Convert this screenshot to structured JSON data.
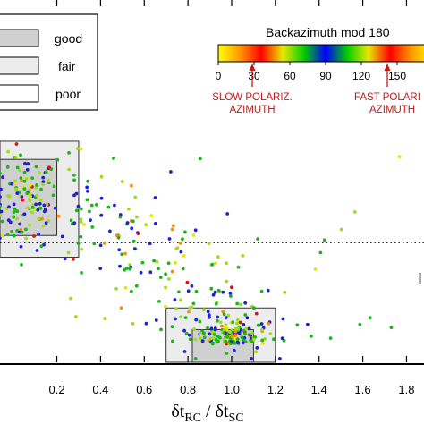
{
  "chart_data": {
    "type": "scatter",
    "title": "",
    "xlabel": {
      "main1": "δt",
      "sub1": "RC",
      "sep": " / δt",
      "sub2": "SC"
    },
    "ylabel": "",
    "xlim": [
      -0.06,
      1.88
    ],
    "ylim": [
      0.0,
      1.0
    ],
    "x_tick_labels": [
      "0.2",
      "0.4",
      "0.6",
      "0.8",
      "1.0",
      "1.2",
      "1.4",
      "1.6",
      "1.8"
    ],
    "x_ticks": [
      0.2,
      0.4,
      0.6,
      0.8,
      1.0,
      1.2,
      1.4,
      1.6,
      1.8
    ],
    "dotted_reference_y": 0.33,
    "quality_boxes": [
      {
        "quality": "good",
        "ranges": [
          {
            "x": [
              -0.06,
              0.2
            ],
            "y": [
              0.35,
              0.56
            ]
          },
          {
            "x": [
              0.82,
              1.1
            ],
            "y": [
              0.0,
              0.09
            ]
          }
        ]
      },
      {
        "quality": "fair",
        "ranges": [
          {
            "x": [
              -0.06,
              0.3
            ],
            "y": [
              0.29,
              0.61
            ]
          },
          {
            "x": [
              0.7,
              1.2
            ],
            "y": [
              0.0,
              0.15
            ]
          }
        ]
      }
    ],
    "legend": {
      "entries": [
        {
          "label": "good",
          "fill": "#d0d0d0"
        },
        {
          "label": "fair",
          "fill": "#ececec"
        },
        {
          "label": "poor",
          "fill": "#ffffff"
        }
      ],
      "placement": "top-left"
    },
    "colorbar": {
      "title": "Backazimuth mod 180",
      "range": [
        0,
        180
      ],
      "tick_labels": [
        "0",
        "30",
        "60",
        "90",
        "120",
        "150"
      ],
      "ticks": [
        0,
        30,
        60,
        90,
        120,
        150
      ],
      "colormap": [
        "#ffff00",
        "#ff9900",
        "#ff0000",
        "#e8e800",
        "#00cc00",
        "#0000ff",
        "#00cc00",
        "#e8e800",
        "#ff0000",
        "#ff9900",
        "#ffff00"
      ],
      "placement": "top-right"
    },
    "annotations": [
      {
        "line1": "SLOW POLARIZ.",
        "line2": "AZIMUTH",
        "points_to": 22
      },
      {
        "line1": "FAST POLARI",
        "line2": "AZIMUTH",
        "points_to": 112
      }
    ],
    "side_letter": "I",
    "n_points": 480,
    "point_color_bins": {
      "blue": 0.3,
      "green": 0.38,
      "yellowgreen": 0.22,
      "yellow": 0.05,
      "orange": 0.03,
      "red": 0.02
    },
    "colors": {
      "blue": "#1f1fd6",
      "green": "#1db31d",
      "yellowgreen": "#9fdc1c",
      "yellow": "#e6e600",
      "orange": "#ff8c00",
      "red": "#e01010"
    }
  }
}
